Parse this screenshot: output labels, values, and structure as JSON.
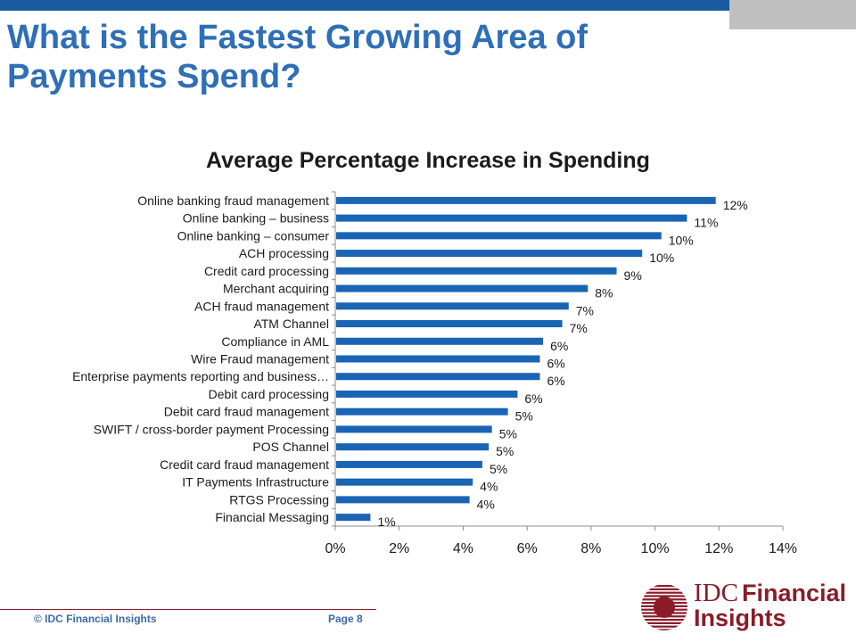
{
  "slide": {
    "title": "What is the Fastest Growing Area of Payments Spend?",
    "footer_left": "© IDC Financial Insights",
    "footer_right": "Page 8"
  },
  "logo": {
    "line1_a": "IDC",
    "line1_b": "Financial",
    "line2": "Insights"
  },
  "colors": {
    "bar": "#1a64b4",
    "title": "#2e6fb7",
    "top_bar": "#1a5b9f",
    "brand": "#8a1c2a"
  },
  "chart_data": {
    "type": "bar",
    "orientation": "horizontal",
    "title": "Average Percentage Increase in Spending",
    "categories": [
      "Online banking fraud management",
      "Online banking – business",
      "Online banking – consumer",
      "ACH processing",
      "Credit card processing",
      "Merchant acquiring",
      "ACH fraud management",
      "ATM Channel",
      "Compliance in AML",
      "Wire Fraud management",
      "Enterprise payments reporting and business…",
      "Debit card processing",
      "Debit card fraud management",
      "SWIFT / cross-border payment Processing",
      "POS Channel",
      "Credit card fraud management",
      "IT Payments Infrastructure",
      "RTGS Processing",
      "Financial Messaging"
    ],
    "values": [
      11.9,
      11.0,
      10.2,
      9.6,
      8.8,
      7.9,
      7.3,
      7.1,
      6.5,
      6.4,
      6.4,
      5.7,
      5.4,
      4.9,
      4.8,
      4.6,
      4.3,
      4.2,
      1.1
    ],
    "data_labels": [
      "12%",
      "11%",
      "10%",
      "10%",
      "9%",
      "8%",
      "7%",
      "7%",
      "6%",
      "6%",
      "6%",
      "6%",
      "5%",
      "5%",
      "5%",
      "5%",
      "4%",
      "4%",
      "1%"
    ],
    "x_ticks": [
      "0%",
      "2%",
      "4%",
      "6%",
      "8%",
      "10%",
      "12%",
      "14%"
    ],
    "xlim": [
      0,
      14
    ],
    "grid": false,
    "legend": "none"
  }
}
